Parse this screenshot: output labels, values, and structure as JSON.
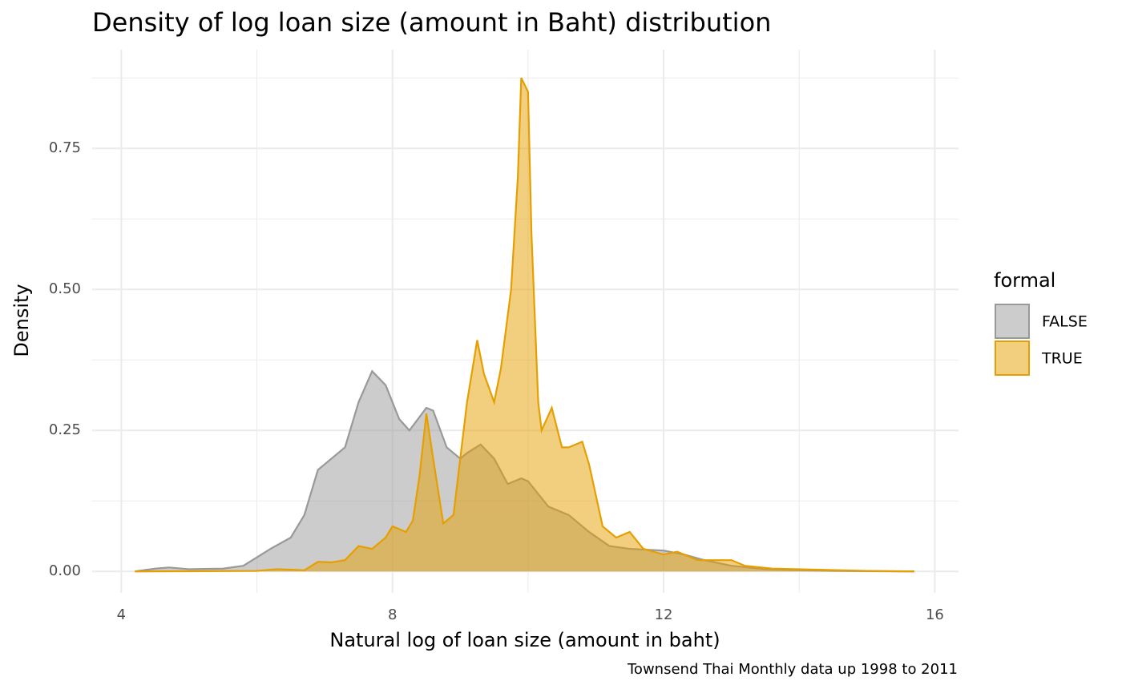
{
  "chart_data": {
    "type": "density",
    "title": "Density of log loan size (amount in Baht) distribution",
    "x_label": "Natural log of loan size (amount in baht)",
    "y_label": "Density",
    "caption": "Townsend Thai Monthly data up 1998 to 2011",
    "legend_title": "formal",
    "legend": "right",
    "grid": true,
    "xlim": [
      3.57,
      16.35
    ],
    "ylim": [
      -0.038,
      0.925
    ],
    "xticks": [
      4,
      8,
      12,
      16
    ],
    "yticks": [
      {
        "value": 0,
        "label": "0.00"
      },
      {
        "value": 0.25,
        "label": "0.25"
      },
      {
        "value": 0.5,
        "label": "0.50"
      },
      {
        "value": 0.75,
        "label": "0.75"
      }
    ],
    "x_minor_grid": [
      6,
      10,
      14
    ],
    "y_minor_grid": [
      0.125,
      0.375,
      0.625,
      0.875
    ],
    "series": [
      {
        "name": "FALSE",
        "color": "#999999",
        "x": [
          4.2,
          4.5,
          4.7,
          5.0,
          5.5,
          5.8,
          6.0,
          6.2,
          6.5,
          6.7,
          6.9,
          7.1,
          7.3,
          7.5,
          7.7,
          7.9,
          8.1,
          8.25,
          8.5,
          8.6,
          8.8,
          9.0,
          9.1,
          9.3,
          9.5,
          9.7,
          9.9,
          10.0,
          10.3,
          10.6,
          10.9,
          11.2,
          11.5,
          12.0,
          12.3,
          12.6,
          13.0,
          13.5,
          14.0,
          14.5,
          15.0,
          15.7
        ],
        "values": [
          0,
          0.005,
          0.007,
          0.004,
          0.005,
          0.01,
          0.025,
          0.04,
          0.06,
          0.1,
          0.18,
          0.2,
          0.22,
          0.3,
          0.355,
          0.33,
          0.27,
          0.25,
          0.29,
          0.285,
          0.22,
          0.2,
          0.21,
          0.225,
          0.2,
          0.155,
          0.165,
          0.16,
          0.115,
          0.1,
          0.07,
          0.045,
          0.04,
          0.037,
          0.03,
          0.02,
          0.01,
          0.004,
          0.002,
          0.001,
          0.0005,
          0
        ]
      },
      {
        "name": "TRUE",
        "color": "#E69F00",
        "x": [
          4.2,
          6.0,
          6.3,
          6.5,
          6.7,
          6.9,
          7.1,
          7.3,
          7.5,
          7.7,
          7.9,
          8.0,
          8.2,
          8.3,
          8.4,
          8.5,
          8.6,
          8.75,
          8.9,
          9.1,
          9.25,
          9.35,
          9.5,
          9.6,
          9.75,
          9.85,
          9.9,
          10.0,
          10.05,
          10.15,
          10.2,
          10.35,
          10.5,
          10.6,
          10.8,
          10.9,
          11.1,
          11.3,
          11.5,
          11.7,
          12.0,
          12.2,
          12.5,
          13.0,
          13.2,
          13.6,
          14.3,
          15.0,
          15.7
        ],
        "values": [
          0,
          0.001,
          0.004,
          0.003,
          0.002,
          0.017,
          0.016,
          0.02,
          0.045,
          0.04,
          0.06,
          0.08,
          0.07,
          0.09,
          0.17,
          0.28,
          0.2,
          0.085,
          0.1,
          0.3,
          0.41,
          0.35,
          0.3,
          0.36,
          0.5,
          0.7,
          0.875,
          0.85,
          0.6,
          0.3,
          0.25,
          0.29,
          0.22,
          0.22,
          0.23,
          0.19,
          0.08,
          0.06,
          0.07,
          0.04,
          0.03,
          0.035,
          0.02,
          0.02,
          0.01,
          0.005,
          0.003,
          0.001,
          0
        ]
      }
    ]
  }
}
